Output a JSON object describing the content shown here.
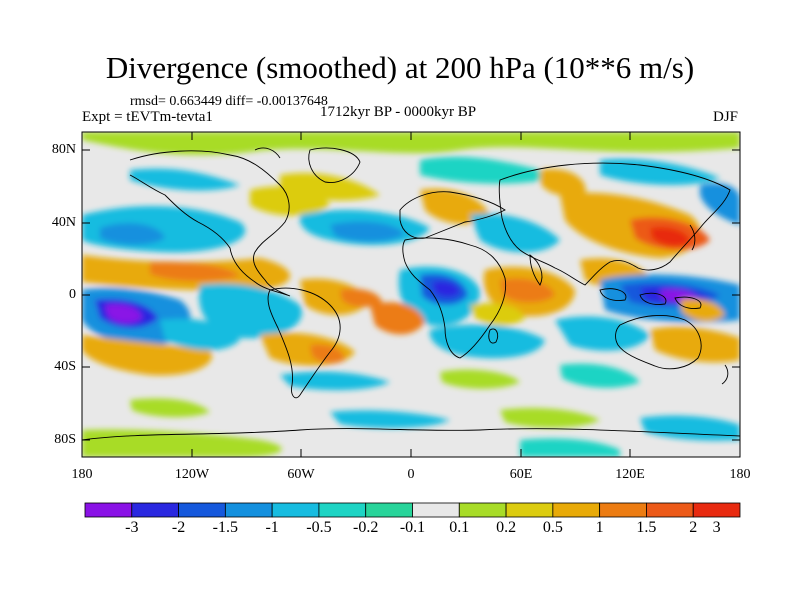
{
  "title": "Divergence (smoothed) at 200 hPa (10**6 m/s)",
  "stats": "rmsd= 0.663449 diff= -0.00137648",
  "experiment": "Expt = tEVTm-tevta1",
  "period": "1712kyr BP - 0000kyr BP",
  "season": "DJF",
  "y_axis": [
    "80N",
    "40N",
    "0",
    "40S",
    "80S"
  ],
  "x_axis": [
    "180",
    "120W",
    "60W",
    "0",
    "60E",
    "120E",
    "180"
  ],
  "colorbar": {
    "labels": [
      "-3",
      "-2",
      "-1.5",
      "-1",
      "-0.5",
      "-0.2",
      "-0.1",
      "0.1",
      "0.2",
      "0.5",
      "1",
      "1.5",
      "2",
      "3"
    ],
    "colors": [
      "#8a12e6",
      "#2a28e0",
      "#1558dc",
      "#1490de",
      "#17bce0",
      "#1ed4c4",
      "#28d49a",
      "#e8e8e8",
      "#a8dc28",
      "#dccc10",
      "#e8aa08",
      "#ec7c12",
      "#ec5a18",
      "#e82a10"
    ]
  },
  "colors": {
    "land_outline": "#000000",
    "background_field": "#e8e8e8"
  }
}
